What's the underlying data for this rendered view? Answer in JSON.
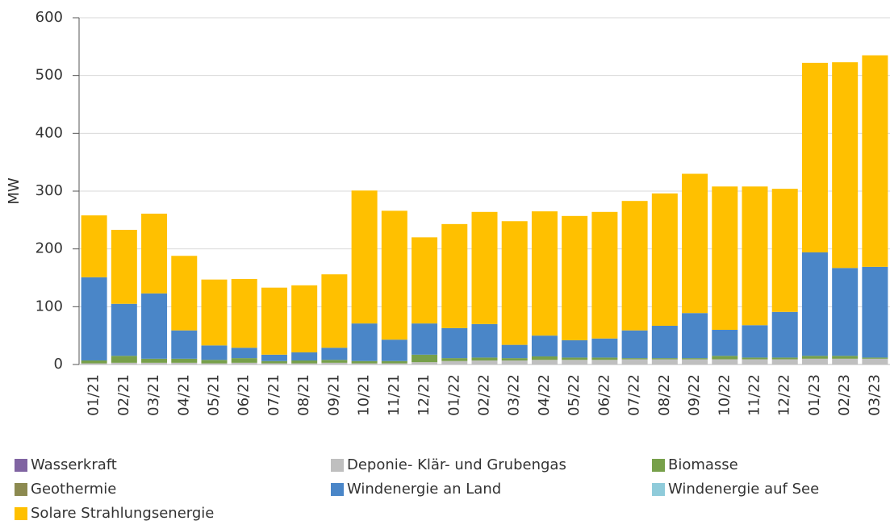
{
  "chart_data": {
    "type": "stacked_bar",
    "y_label": "MW",
    "categories": [
      "01/21",
      "02/21",
      "03/21",
      "04/21",
      "05/21",
      "06/21",
      "07/21",
      "08/21",
      "09/21",
      "10/21",
      "11/21",
      "12/21",
      "01/22",
      "02/22",
      "03/22",
      "04/22",
      "05/22",
      "06/22",
      "07/22",
      "08/22",
      "09/22",
      "10/22",
      "11/22",
      "12/22",
      "01/23",
      "02/23",
      "03/23"
    ],
    "series": [
      {
        "name": "Wasserkraft",
        "color": "#8064a2",
        "values": [
          0,
          0,
          0,
          0,
          0,
          0,
          0,
          0,
          0,
          0,
          0,
          0,
          0,
          0,
          0,
          0,
          0,
          0,
          0,
          0,
          0,
          0,
          0,
          0,
          0,
          0,
          0
        ]
      },
      {
        "name": "Deponie- Klär- und Grubengas",
        "color": "#bfbfbf",
        "values": [
          2,
          3,
          3,
          3,
          2,
          3,
          2,
          2,
          3,
          2,
          2,
          4,
          6,
          7,
          7,
          8,
          8,
          8,
          9,
          9,
          9,
          9,
          9,
          9,
          10,
          10,
          10
        ]
      },
      {
        "name": "Biomasse",
        "color": "#77a04a",
        "values": [
          5,
          12,
          7,
          7,
          6,
          8,
          4,
          5,
          5,
          4,
          4,
          13,
          5,
          5,
          4,
          6,
          4,
          4,
          2,
          2,
          2,
          6,
          3,
          3,
          5,
          5,
          2
        ]
      },
      {
        "name": "Geothermie",
        "color": "#8c8a50",
        "values": [
          0,
          0,
          0,
          0,
          0,
          0,
          0,
          0,
          0,
          0,
          0,
          0,
          0,
          0,
          0,
          0,
          0,
          0,
          0,
          0,
          0,
          0,
          0,
          0,
          0,
          0,
          0
        ]
      },
      {
        "name": "Windenergie an Land",
        "color": "#4a86c8",
        "values": [
          144,
          90,
          113,
          49,
          25,
          18,
          11,
          14,
          21,
          65,
          37,
          54,
          52,
          58,
          23,
          36,
          30,
          33,
          48,
          56,
          78,
          45,
          56,
          79,
          179,
          152,
          157
        ]
      },
      {
        "name": "Windenergie auf See",
        "color": "#8fcbda",
        "values": [
          0,
          0,
          0,
          0,
          0,
          0,
          0,
          0,
          0,
          0,
          0,
          0,
          0,
          0,
          0,
          0,
          0,
          0,
          0,
          0,
          0,
          0,
          0,
          0,
          0,
          0,
          0
        ]
      },
      {
        "name": "Solare Strahlungsenergie",
        "color": "#ffc000",
        "values": [
          107,
          128,
          138,
          129,
          114,
          119,
          116,
          116,
          127,
          230,
          223,
          149,
          180,
          194,
          214,
          215,
          215,
          219,
          224,
          229,
          241,
          248,
          240,
          213,
          328,
          356,
          366
        ]
      }
    ],
    "ylim": [
      0,
      600
    ],
    "yticks": [
      0,
      100,
      200,
      300,
      400,
      500,
      600
    ],
    "grid": true
  }
}
